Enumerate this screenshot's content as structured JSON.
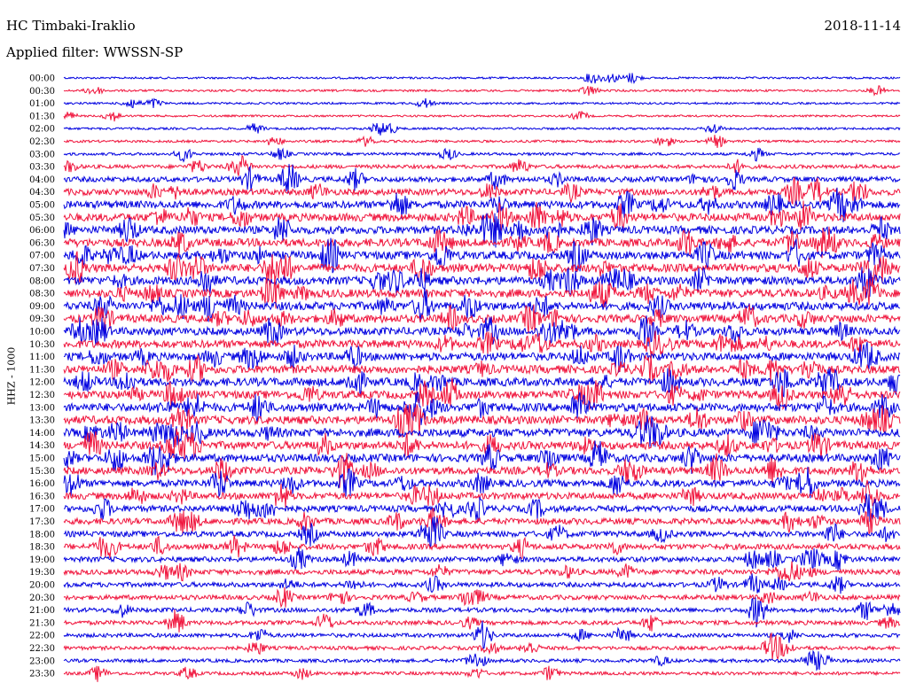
{
  "header": {
    "station": "HC Timbaki-Iraklio",
    "date": "2018-11-14",
    "filter": "Applied filter: WWSSN-SP"
  },
  "chart_data": {
    "type": "line",
    "title": "HC Timbaki-Iraklio",
    "ylabel": "HHZ - 1000",
    "colors": [
      "#0000e0",
      "#f0143c"
    ],
    "ticks": [
      "00:00",
      "00:30",
      "01:00",
      "01:30",
      "02:00",
      "02:30",
      "03:00",
      "03:30",
      "04:00",
      "04:30",
      "05:00",
      "05:30",
      "06:00",
      "06:30",
      "07:00",
      "07:30",
      "08:00",
      "08:30",
      "09:00",
      "09:30",
      "10:00",
      "10:30",
      "11:00",
      "11:30",
      "12:00",
      "12:30",
      "13:00",
      "13:30",
      "14:00",
      "14:30",
      "15:00",
      "15:30",
      "16:00",
      "16:30",
      "17:00",
      "17:30",
      "18:00",
      "18:30",
      "19:00",
      "19:30",
      "20:00",
      "20:30",
      "21:00",
      "21:30",
      "22:00",
      "22:30",
      "23:00",
      "23:30"
    ],
    "activity_level": [
      0.12,
      0.14,
      0.13,
      0.12,
      0.15,
      0.18,
      0.22,
      0.35,
      0.55,
      0.7,
      0.85,
      0.9,
      0.9,
      0.92,
      0.95,
      0.95,
      0.95,
      0.95,
      0.95,
      0.92,
      0.9,
      0.92,
      0.92,
      0.92,
      0.95,
      0.92,
      0.95,
      0.95,
      0.95,
      0.92,
      0.9,
      0.85,
      0.8,
      0.75,
      0.7,
      0.68,
      0.62,
      0.6,
      0.55,
      0.55,
      0.5,
      0.48,
      0.45,
      0.42,
      0.38,
      0.35,
      0.32,
      0.3
    ],
    "grid": false
  }
}
